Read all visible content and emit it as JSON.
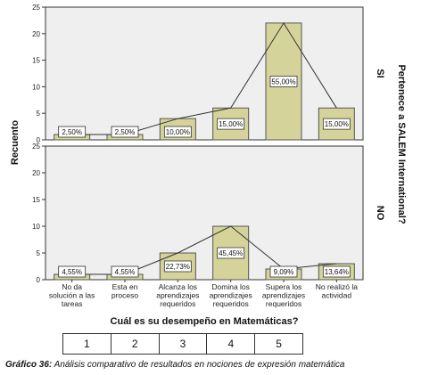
{
  "chart_data": {
    "type": "bar",
    "categories": [
      [
        "No da",
        "solución a las",
        "tareas"
      ],
      [
        "Esta en",
        "proceso"
      ],
      [
        "Alcanza los",
        "aprendizajes",
        "requeridos"
      ],
      [
        "Domina los",
        "aprendizajes",
        "requeridos"
      ],
      [
        "Supera los",
        "aprendizajes",
        "requeridos"
      ],
      [
        "No realizó la",
        "actividad"
      ]
    ],
    "xlabel": "Cuál es su desempeño en Matemáticas?",
    "ylabel": "Recuento",
    "panel_axis_title": "Pertenece a SALEM International?",
    "ylim": [
      0,
      25
    ],
    "yticks": [
      0,
      5,
      10,
      15,
      20,
      25
    ],
    "panels": [
      {
        "label": "SI",
        "values": [
          1,
          1,
          4,
          6,
          22,
          6
        ],
        "labels": [
          "2,50%",
          "2,50%",
          "10,00%",
          "15,00%",
          "55,00%",
          "15,00%"
        ]
      },
      {
        "label": "NO",
        "values": [
          1,
          1,
          5,
          10,
          2,
          3
        ],
        "labels": [
          "4,55%",
          "4,55%",
          "22,73%",
          "45,45%",
          "9,09%",
          "13,64%"
        ]
      }
    ],
    "bar_color": "#d4d49a",
    "bar_edge": "#555555",
    "panel_bg": "#efefef"
  },
  "key_table": [
    "1",
    "2",
    "3",
    "4",
    "5"
  ],
  "caption": {
    "label": "Gráfico 36:",
    "text": " Análisis comparativo de resultados en nociones de expresión matemática"
  }
}
